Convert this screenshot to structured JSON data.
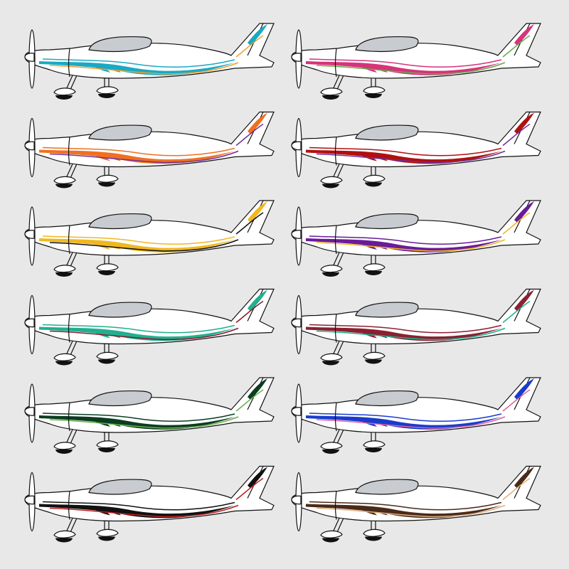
{
  "variants": [
    {
      "stripe": "#1aa9c4",
      "accent": "#f0a030"
    },
    {
      "stripe": "#d6337a",
      "accent": "#6aa84f"
    },
    {
      "stripe": "#f07020",
      "accent": "#7030a0"
    },
    {
      "stripe": "#b01010",
      "accent": "#7030a0"
    },
    {
      "stripe": "#f0b820",
      "accent": "#111111"
    },
    {
      "stripe": "#6a1b9a",
      "accent": "#f0b820"
    },
    {
      "stripe": "#20b090",
      "accent": "#8b1a2a"
    },
    {
      "stripe": "#8b2030",
      "accent": "#20b090"
    },
    {
      "stripe": "#0b3d20",
      "accent": "#6ab04c"
    },
    {
      "stripe": "#1a3ccc",
      "accent": "#e060a0"
    },
    {
      "stripe": "#111111",
      "accent": "#c02020"
    },
    {
      "stripe": "#4a2a18",
      "accent": "#e0b080"
    }
  ]
}
